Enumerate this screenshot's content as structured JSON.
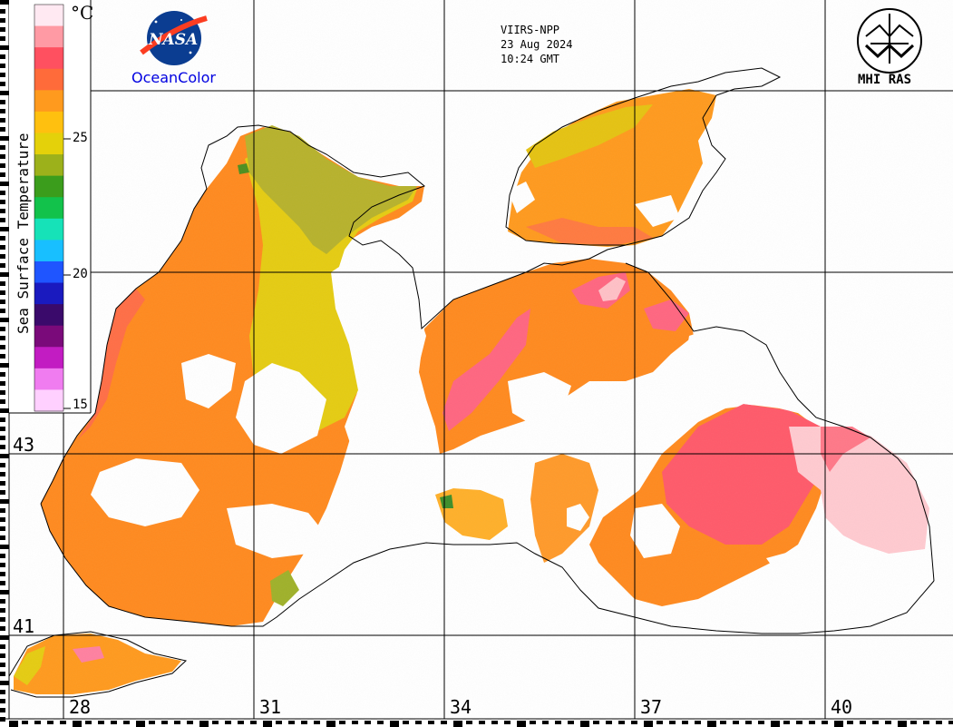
{
  "header": {
    "sensor": "VIIRS-NPP",
    "date": "23 Aug 2024",
    "time": "10:24 GMT"
  },
  "logos": {
    "nasa_text": "NASA",
    "oceancolor": "OceanColor",
    "mhi": "MHI RAS"
  },
  "colorbar": {
    "title": "Sea Surface Temperature",
    "unit": "°C",
    "ticks": [
      "25",
      "20",
      "15"
    ],
    "colors": [
      "#ffe9f2",
      "#ff9aa4",
      "#ff5060",
      "#ff6b3a",
      "#ff9a1e",
      "#ffc00f",
      "#e4d10a",
      "#9cb11b",
      "#3b9d1c",
      "#12c24b",
      "#16e2b8",
      "#18bfff",
      "#1f55ff",
      "#1a1abf",
      "#3a0a6b",
      "#7a0a7a",
      "#c21cc2",
      "#f07cf0",
      "#ffd0ff"
    ]
  },
  "grid": {
    "lat_labels": [
      "43",
      "41"
    ],
    "lon_labels": [
      "28",
      "31",
      "34",
      "37",
      "40"
    ]
  },
  "sst_palette": {
    "land": "#ffffff",
    "cloud": "#ffffff",
    "warm_orange": "#ff8a1f",
    "hot_pink": "#ff6a78",
    "very_hot": "#ffc8cc",
    "yellow": "#ffd11a",
    "olive": "#b8b42a",
    "green": "#2aa22a"
  }
}
